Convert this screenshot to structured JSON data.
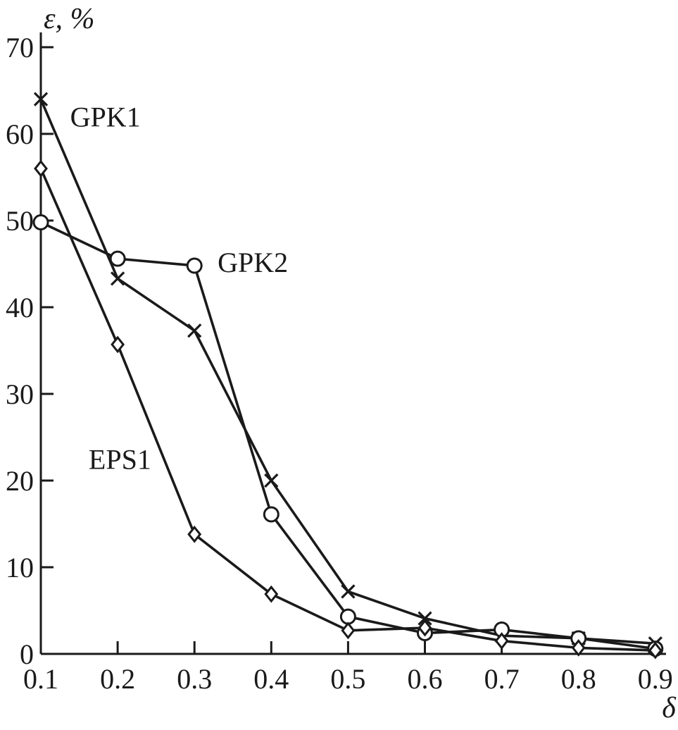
{
  "chart_data": {
    "type": "line",
    "title": "",
    "xlabel": "δ",
    "ylabel": "ε, %",
    "x": [
      0.1,
      0.2,
      0.3,
      0.4,
      0.5,
      0.6,
      0.7,
      0.8,
      0.9
    ],
    "xlim": [
      0.1,
      0.9
    ],
    "ylim": [
      0,
      70
    ],
    "xticks": [
      0.1,
      0.2,
      0.3,
      0.4,
      0.5,
      0.6,
      0.7,
      0.8,
      0.9
    ],
    "yticks": [
      0,
      10,
      20,
      30,
      40,
      50,
      60,
      70
    ],
    "xtick_labels": [
      "0.1",
      "0.2",
      "0.3",
      "0.4",
      "0.5",
      "0.6",
      "0.7",
      "0.8",
      "0.9"
    ],
    "ytick_labels": [
      "0",
      "10",
      "20",
      "30",
      "40",
      "50",
      "60",
      "70"
    ],
    "grid": false,
    "legend": "inline-labels",
    "background_color": "#ffffff",
    "line_color": "#1a1a1a",
    "series": [
      {
        "name": "GPK1",
        "marker": "x",
        "values": [
          64,
          43.3,
          37.3,
          20,
          7.2,
          4.1,
          2.1,
          1.8,
          1.2
        ],
        "label_pos": {
          "x": 0.184,
          "y": 62
        }
      },
      {
        "name": "GPK2",
        "marker": "circle",
        "values": [
          49.8,
          45.6,
          44.8,
          16.1,
          4.3,
          2.4,
          2.8,
          1.8,
          0.6
        ],
        "label_pos": {
          "x": 0.376,
          "y": 45.2
        }
      },
      {
        "name": "EPS1",
        "marker": "diamond",
        "values": [
          56,
          35.7,
          13.8,
          6.9,
          2.7,
          3,
          1.5,
          0.7,
          0.4
        ],
        "label_pos": {
          "x": 0.203,
          "y": 22.5
        }
      }
    ]
  }
}
